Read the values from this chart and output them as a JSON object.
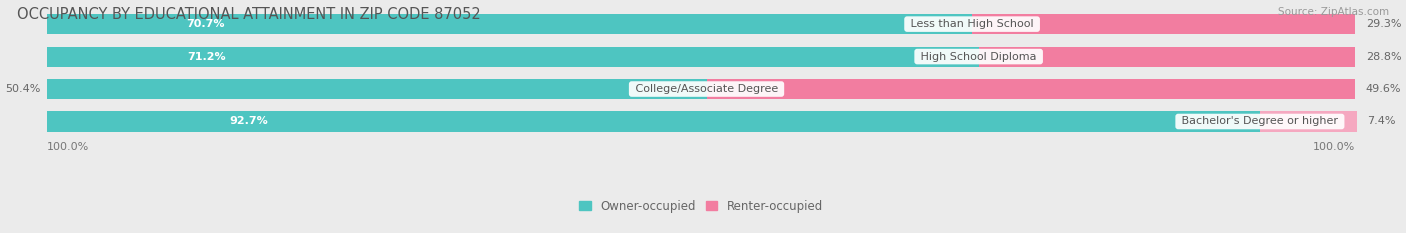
{
  "title": "OCCUPANCY BY EDUCATIONAL ATTAINMENT IN ZIP CODE 87052",
  "source": "Source: ZipAtlas.com",
  "categories": [
    "Less than High School",
    "High School Diploma",
    "College/Associate Degree",
    "Bachelor's Degree or higher"
  ],
  "owner_pct": [
    70.7,
    71.2,
    50.4,
    92.7
  ],
  "renter_pct": [
    29.3,
    28.8,
    49.6,
    7.4
  ],
  "owner_color": "#4EC5C1",
  "renter_color": "#F27DA0",
  "renter_color_light": "#F5A8C0",
  "bg_color": "#EBEBEB",
  "bar_bg_color": "#FFFFFF",
  "title_fontsize": 10.5,
  "label_fontsize": 8.0,
  "source_fontsize": 7.5,
  "axis_label_fontsize": 8.0,
  "legend_fontsize": 8.5,
  "bar_height": 0.62,
  "x_left_label": "100.0%",
  "x_right_label": "100.0%"
}
